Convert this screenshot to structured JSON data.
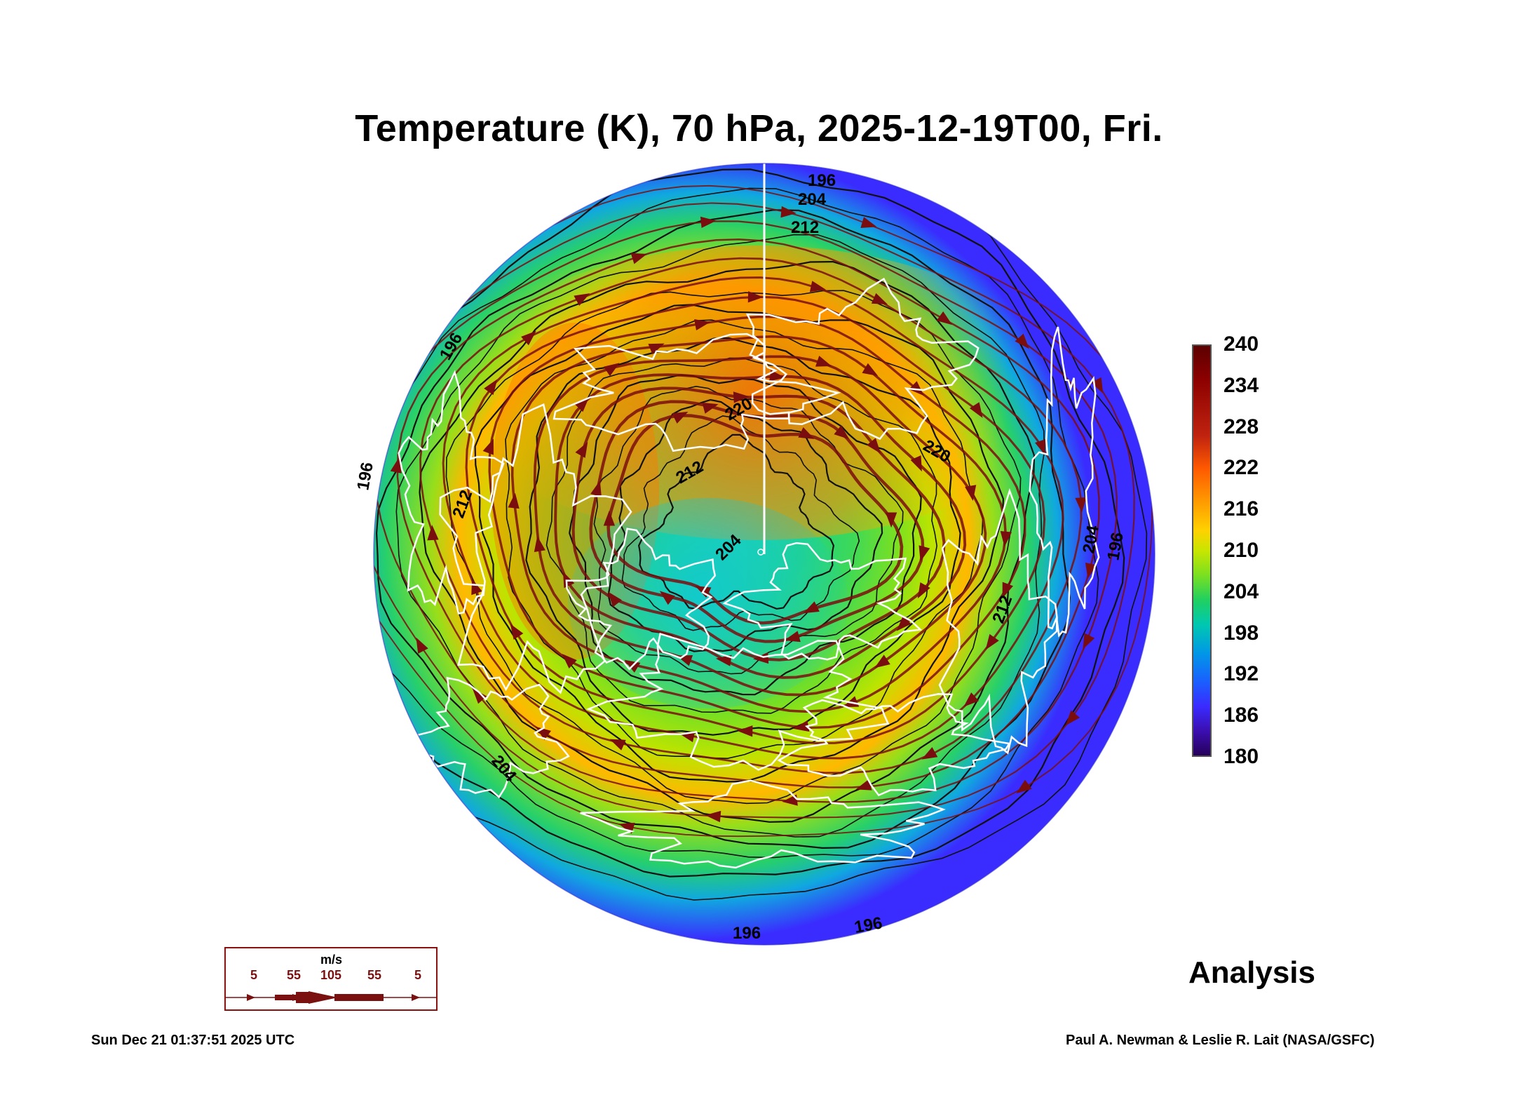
{
  "title": "Temperature (K), 70 hPa, 2025-12-19T00, Fri.",
  "colorbar": {
    "units": "K",
    "labels": [
      "240",
      "234",
      "228",
      "222",
      "216",
      "210",
      "204",
      "198",
      "192",
      "186",
      "180"
    ],
    "min": 180,
    "max": 240
  },
  "contour_labels": [
    "196",
    "204",
    "212",
    "196",
    "196",
    "212",
    "220",
    "212",
    "220",
    "204",
    "204",
    "212",
    "196",
    "204",
    "196",
    "196"
  ],
  "wind_legend": {
    "unit": "m/s",
    "ticks": [
      "5",
      "55",
      "105",
      "55",
      "5"
    ]
  },
  "analysis_label": "Analysis",
  "footer": {
    "timestamp": "Sun Dec 21 01:37:51 2025 UTC",
    "credit": "Paul A. Newman & Leslie R. Lait (NASA/GSFC)"
  },
  "colors": {
    "streamline": "#7a0e0e",
    "contour": "#111111",
    "coastline": "#ffffff",
    "cold": "#3b2bff",
    "warm": "#ff6a00"
  }
}
